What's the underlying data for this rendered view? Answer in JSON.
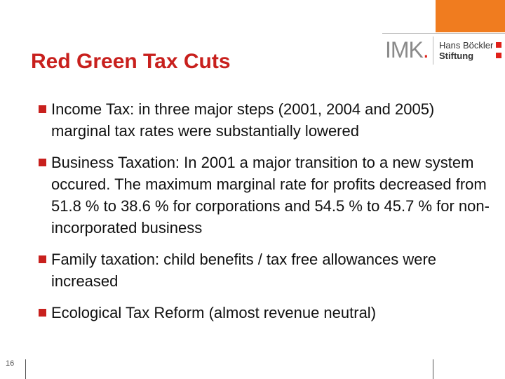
{
  "header": {
    "title": "Red Green Tax Cuts",
    "accent_color": "#f07c1f",
    "title_color": "#c8201d"
  },
  "logo": {
    "imk_text": "IMK",
    "imk_dot": ".",
    "foundation_line1": "Hans Böckler",
    "foundation_line2": "Stiftung"
  },
  "bullets": [
    "Income Tax: in three major steps (2001, 2004 and 2005) marginal tax rates were substantially lowered",
    "Business Taxation: In 2001 a major transition to a new system occured. The maximum marginal rate for profits decreased from 51.8 % to 38.6 % for corporations and 54.5 % to 45.7 % for non-incorporated business",
    "Family taxation: child benefits / tax free allowances were increased",
    "Ecological Tax Reform (almost revenue neutral)"
  ],
  "footer": {
    "page_number": "16"
  }
}
